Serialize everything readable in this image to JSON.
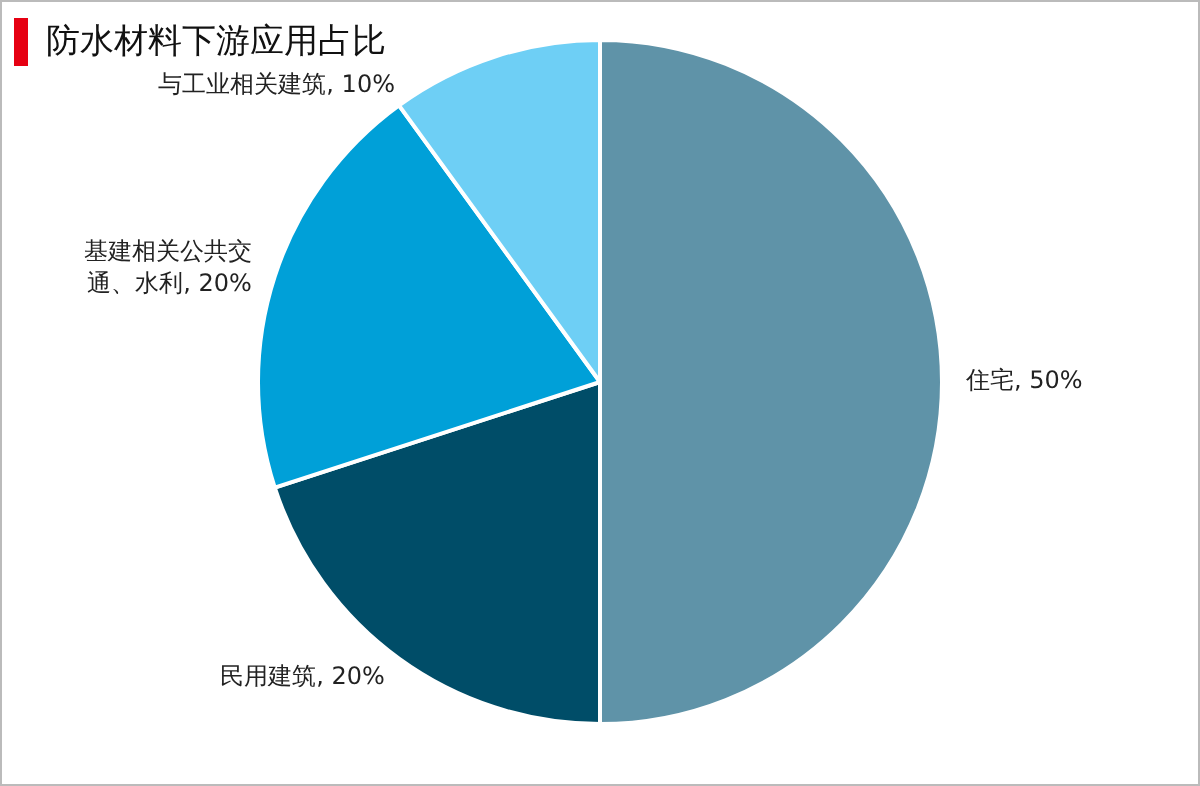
{
  "chart_data": {
    "type": "pie",
    "title": "防水材料下游应用占比",
    "categories": [
      "住宅",
      "民用建筑",
      "基建相关公共交通、水利",
      "与工业相关建筑"
    ],
    "values": [
      50,
      20,
      20,
      10
    ],
    "value_labels": [
      "50%",
      "20%",
      "20%",
      "10%"
    ],
    "colors": [
      "#5f93a8",
      "#004d68",
      "#00a0d8",
      "#6ecff5"
    ],
    "legend": false
  }
}
